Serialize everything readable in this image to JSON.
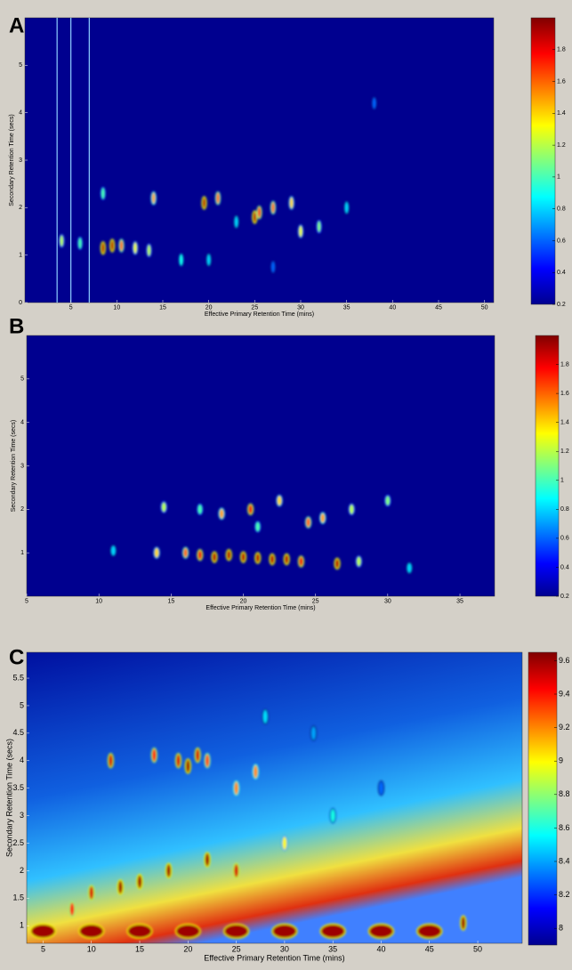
{
  "chart_data": [
    {
      "type": "heatmap",
      "panel_label": "A",
      "xlabel": "Effective Primary Retention Time (mins)",
      "ylabel": "Secondary Retention Time (secs)",
      "xlim": [
        0,
        51
      ],
      "ylim": [
        0,
        6
      ],
      "xticks": [
        5,
        10,
        15,
        20,
        25,
        30,
        35,
        40,
        45,
        50
      ],
      "yticks": [
        0,
        1,
        2,
        3,
        4,
        5
      ],
      "colorbar": {
        "lim": [
          0.2,
          2
        ],
        "ticks": [
          0.2,
          0.4,
          0.6,
          0.8,
          1,
          1.2,
          1.4,
          1.6,
          1.8
        ]
      },
      "peaks": {
        "x": [
          4,
          6,
          8.5,
          9.5,
          10.5,
          12,
          13.5,
          14,
          19.5,
          21,
          25,
          25.5,
          27,
          29,
          30,
          32,
          8.5,
          17,
          20,
          35,
          38,
          23,
          27
        ],
        "y": [
          1.3,
          1.25,
          1.15,
          1.2,
          1.2,
          1.15,
          1.1,
          2.2,
          2.1,
          2.2,
          1.8,
          1.9,
          2.0,
          2.1,
          1.5,
          1.6,
          2.3,
          0.9,
          0.9,
          2.0,
          4.2,
          1.7,
          0.75
        ],
        "z": [
          1.2,
          1.0,
          1.9,
          1.9,
          1.6,
          1.3,
          1.2,
          1.5,
          1.9,
          1.6,
          1.9,
          1.7,
          1.6,
          1.4,
          1.3,
          1.1,
          1.0,
          0.9,
          0.8,
          0.8,
          0.6,
          0.8,
          0.6
        ]
      }
    },
    {
      "type": "heatmap",
      "panel_label": "B",
      "xlabel": "Effective Primary Retention Time (mins)",
      "ylabel": "Secondary Retention Time (secs)",
      "xlim": [
        5,
        37.4
      ],
      "ylim": [
        0,
        6
      ],
      "xticks": [
        5,
        10,
        15,
        20,
        25,
        30,
        35
      ],
      "yticks": [
        1,
        2,
        3,
        4,
        5
      ],
      "colorbar": {
        "lim": [
          0.2,
          2
        ],
        "ticks": [
          0.2,
          0.4,
          0.6,
          0.8,
          1,
          1.2,
          1.4,
          1.6,
          1.8
        ]
      },
      "peaks": {
        "x": [
          11,
          14,
          16,
          17,
          18,
          19,
          20,
          21,
          22,
          23,
          24,
          26.5,
          28,
          14.5,
          18.5,
          20.5,
          22.5,
          24.5,
          25.5,
          27.5,
          30,
          31.5,
          17,
          21
        ],
        "y": [
          1.05,
          1.0,
          1.0,
          0.95,
          0.9,
          0.95,
          0.9,
          0.88,
          0.85,
          0.85,
          0.8,
          0.75,
          0.8,
          2.05,
          1.9,
          2.0,
          2.2,
          1.7,
          1.8,
          2.0,
          2.2,
          0.65,
          2.0,
          1.6
        ],
        "z": [
          0.8,
          1.4,
          1.6,
          1.8,
          1.9,
          1.9,
          1.9,
          1.9,
          1.9,
          1.9,
          1.8,
          1.9,
          1.2,
          1.2,
          1.5,
          1.8,
          1.4,
          1.6,
          1.5,
          1.2,
          1.1,
          0.8,
          1.0,
          1.0
        ]
      }
    },
    {
      "type": "heatmap",
      "panel_label": "C",
      "xlabel": "Effective Primary Retention Time (mins)",
      "ylabel": "Secondary Retention Time (secs)",
      "xlim": [
        3.3,
        54.6
      ],
      "ylim": [
        0.68,
        5.97
      ],
      "xticks": [
        5,
        10,
        15,
        20,
        25,
        30,
        35,
        40,
        45,
        50
      ],
      "yticks": [
        1,
        1.5,
        2,
        2.5,
        3,
        3.5,
        4,
        4.5,
        5,
        5.5
      ],
      "colorbar": {
        "lim": [
          7.9,
          9.65
        ],
        "ticks": [
          8,
          8.2,
          8.4,
          8.6,
          8.8,
          9,
          9.2,
          9.4,
          9.6
        ]
      },
      "peaks": {
        "x": [
          12,
          16.5,
          19,
          20,
          21,
          22,
          27,
          25,
          15,
          18,
          22,
          10,
          8,
          48.5,
          30,
          35,
          28,
          33,
          40,
          25,
          13,
          5,
          10,
          15,
          20,
          25,
          30,
          35,
          40,
          45
        ],
        "y": [
          4.0,
          4.1,
          4.0,
          3.9,
          4.1,
          4.0,
          3.8,
          3.5,
          1.8,
          2.0,
          2.2,
          1.6,
          1.3,
          1.05,
          2.5,
          3.0,
          4.8,
          4.5,
          3.5,
          2.0,
          1.7,
          0.9,
          0.9,
          0.9,
          0.9,
          0.9,
          0.9,
          0.9,
          0.9,
          0.9
        ],
        "z": [
          9.5,
          9.4,
          9.5,
          9.6,
          9.5,
          9.3,
          9.2,
          9.2,
          9.6,
          9.6,
          9.6,
          9.5,
          9.4,
          9.6,
          9.0,
          8.6,
          8.5,
          8.4,
          8.3,
          9.5,
          9.6,
          9.6,
          9.6,
          9.6,
          9.6,
          9.6,
          9.6,
          9.6,
          9.6,
          9.6
        ]
      }
    }
  ]
}
